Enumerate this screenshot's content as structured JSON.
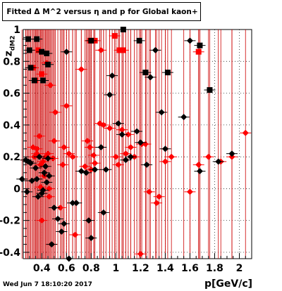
{
  "title": "Fitted Δ M^2 versus η and p for Global kaon+",
  "timestamp": "Wed Jun  7 18:10:20 2017",
  "colors": {
    "series_red": "#ff0000",
    "series_black": "#000000",
    "gridline": "#000000",
    "errorbar": "#cc0000"
  },
  "chart_data": {
    "type": "scatter",
    "title": "Fitted Δ M^2 versus η and p for Global kaon+",
    "xlabel": "p[GeV/c]",
    "ylabel": "z_{dM2}",
    "xlim": [
      0.25,
      2.1
    ],
    "ylim": [
      -0.44,
      1.0
    ],
    "xticks": [
      0.4,
      0.6,
      0.8,
      1.0,
      1.2,
      1.4,
      1.6,
      1.8,
      2.0
    ],
    "xtick_labels": [
      "0.4",
      "0.6",
      "0.8",
      "1",
      "1.2",
      "1.4",
      "1.6",
      "1.8",
      "2"
    ],
    "yticks": [
      -0.4,
      -0.2,
      0.0,
      0.2,
      0.4,
      0.6,
      0.8,
      1.0
    ],
    "ytick_labels": [
      "-0.4",
      "-0.2",
      "0",
      "0.2",
      "0.4",
      "0.6",
      "0.8",
      "1"
    ],
    "grid": true,
    "series": [
      {
        "color": "red",
        "markers": {
          "diamond": [
            [
              0.27,
              0.18
            ],
            [
              0.33,
              0.26
            ],
            [
              0.34,
              0.2
            ],
            [
              0.36,
              0.25
            ],
            [
              0.36,
              0.22
            ],
            [
              0.38,
              0.33
            ],
            [
              0.39,
              0.15
            ],
            [
              0.39,
              0.01
            ],
            [
              0.4,
              -0.2
            ],
            [
              0.41,
              0.17
            ],
            [
              0.42,
              0.08
            ],
            [
              0.43,
              0.2
            ],
            [
              0.44,
              0.79
            ],
            [
              0.45,
              0.22
            ],
            [
              0.46,
              0.0
            ],
            [
              0.46,
              -0.05
            ],
            [
              0.47,
              0.65
            ],
            [
              0.48,
              -0.35
            ],
            [
              0.49,
              0.19
            ],
            [
              0.5,
              0.3
            ],
            [
              0.51,
              0.48
            ],
            [
              0.55,
              -0.12
            ],
            [
              0.57,
              0.15
            ],
            [
              0.58,
              0.26
            ],
            [
              0.6,
              0.52
            ],
            [
              0.62,
              0.22
            ],
            [
              0.65,
              0.2
            ],
            [
              0.67,
              -0.29
            ],
            [
              0.72,
              0.75
            ],
            [
              0.75,
              0.14
            ],
            [
              0.77,
              0.3
            ],
            [
              0.79,
              0.26
            ],
            [
              0.8,
              0.12
            ],
            [
              0.82,
              0.21
            ],
            [
              0.83,
              0.16
            ],
            [
              0.87,
              0.41
            ],
            [
              0.88,
              0.87
            ],
            [
              0.9,
              0.4
            ],
            [
              0.95,
              0.38
            ],
            [
              1.0,
              0.2
            ],
            [
              1.02,
              0.15
            ],
            [
              1.05,
              0.37
            ],
            [
              1.08,
              0.22
            ],
            [
              1.1,
              0.34
            ],
            [
              1.12,
              0.26
            ],
            [
              1.15,
              0.2
            ],
            [
              1.2,
              -0.41
            ],
            [
              1.21,
              0.28
            ],
            [
              1.24,
              0.28
            ],
            [
              1.27,
              -0.02
            ],
            [
              1.33,
              -0.09
            ],
            [
              1.35,
              -0.05
            ],
            [
              1.4,
              0.17
            ],
            [
              1.45,
              0.2
            ],
            [
              1.6,
              -0.02
            ],
            [
              1.67,
              0.15
            ],
            [
              1.75,
              0.2
            ],
            [
              1.85,
              0.17
            ],
            [
              1.94,
              0.2
            ],
            [
              2.05,
              0.35
            ]
          ],
          "square": [
            [
              0.33,
              0.76
            ],
            [
              0.35,
              0.68
            ],
            [
              0.37,
              0.87
            ],
            [
              0.4,
              0.72
            ],
            [
              0.79,
              0.93
            ],
            [
              0.83,
              0.93
            ],
            [
              0.99,
              0.96
            ],
            [
              1.03,
              0.87
            ],
            [
              1.06,
              0.87
            ],
            [
              1.67,
              0.86
            ]
          ]
        }
      },
      {
        "color": "black",
        "markers": {
          "diamond": [
            [
              0.24,
              0.06
            ],
            [
              0.27,
              0.18
            ],
            [
              0.28,
              -0.02
            ],
            [
              0.29,
              0.17
            ],
            [
              0.31,
              0.16
            ],
            [
              0.32,
              0.05
            ],
            [
              0.35,
              0.13
            ],
            [
              0.36,
              0.06
            ],
            [
              0.37,
              -0.05
            ],
            [
              0.38,
              0.2
            ],
            [
              0.4,
              -0.03
            ],
            [
              0.41,
              -0.01
            ],
            [
              0.42,
              0.1
            ],
            [
              0.43,
              0.14
            ],
            [
              0.44,
              0.04
            ],
            [
              0.45,
              0.19
            ],
            [
              0.46,
              0.08
            ],
            [
              0.48,
              -0.35
            ],
            [
              0.5,
              -0.12
            ],
            [
              0.53,
              -0.19
            ],
            [
              0.56,
              -0.27
            ],
            [
              0.58,
              -0.22
            ],
            [
              0.6,
              0.86
            ],
            [
              0.62,
              -0.44
            ],
            [
              0.65,
              -0.09
            ],
            [
              0.68,
              -0.09
            ],
            [
              0.72,
              0.11
            ],
            [
              0.76,
              0.1
            ],
            [
              0.78,
              -0.2
            ],
            [
              0.8,
              -0.31
            ],
            [
              0.83,
              0.12
            ],
            [
              0.88,
              0.26
            ],
            [
              0.9,
              -0.15
            ],
            [
              0.92,
              0.12
            ],
            [
              0.95,
              0.59
            ],
            [
              0.97,
              0.71
            ],
            [
              1.02,
              0.41
            ],
            [
              1.05,
              0.34
            ],
            [
              1.08,
              0.18
            ],
            [
              1.12,
              0.2
            ],
            [
              1.17,
              0.36
            ],
            [
              1.2,
              0.29
            ],
            [
              1.25,
              0.15
            ],
            [
              1.28,
              0.7
            ],
            [
              1.32,
              0.87
            ],
            [
              1.37,
              0.48
            ],
            [
              1.4,
              0.25
            ],
            [
              1.55,
              0.45
            ],
            [
              1.6,
              0.93
            ],
            [
              1.68,
              0.11
            ],
            [
              1.83,
              0.17
            ],
            [
              1.94,
              0.22
            ]
          ],
          "square": [
            [
              0.29,
              0.94
            ],
            [
              0.3,
              0.87
            ],
            [
              0.31,
              0.76
            ],
            [
              0.34,
              0.68
            ],
            [
              0.36,
              0.94
            ],
            [
              0.4,
              0.86
            ],
            [
              0.41,
              0.68
            ],
            [
              0.44,
              0.85
            ],
            [
              0.45,
              0.78
            ],
            [
              0.8,
              0.93
            ],
            [
              1.06,
              1.0
            ],
            [
              1.19,
              0.93
            ],
            [
              1.24,
              0.73
            ],
            [
              1.42,
              0.73
            ],
            [
              1.68,
              0.9
            ],
            [
              1.76,
              0.62
            ]
          ]
        }
      }
    ]
  }
}
